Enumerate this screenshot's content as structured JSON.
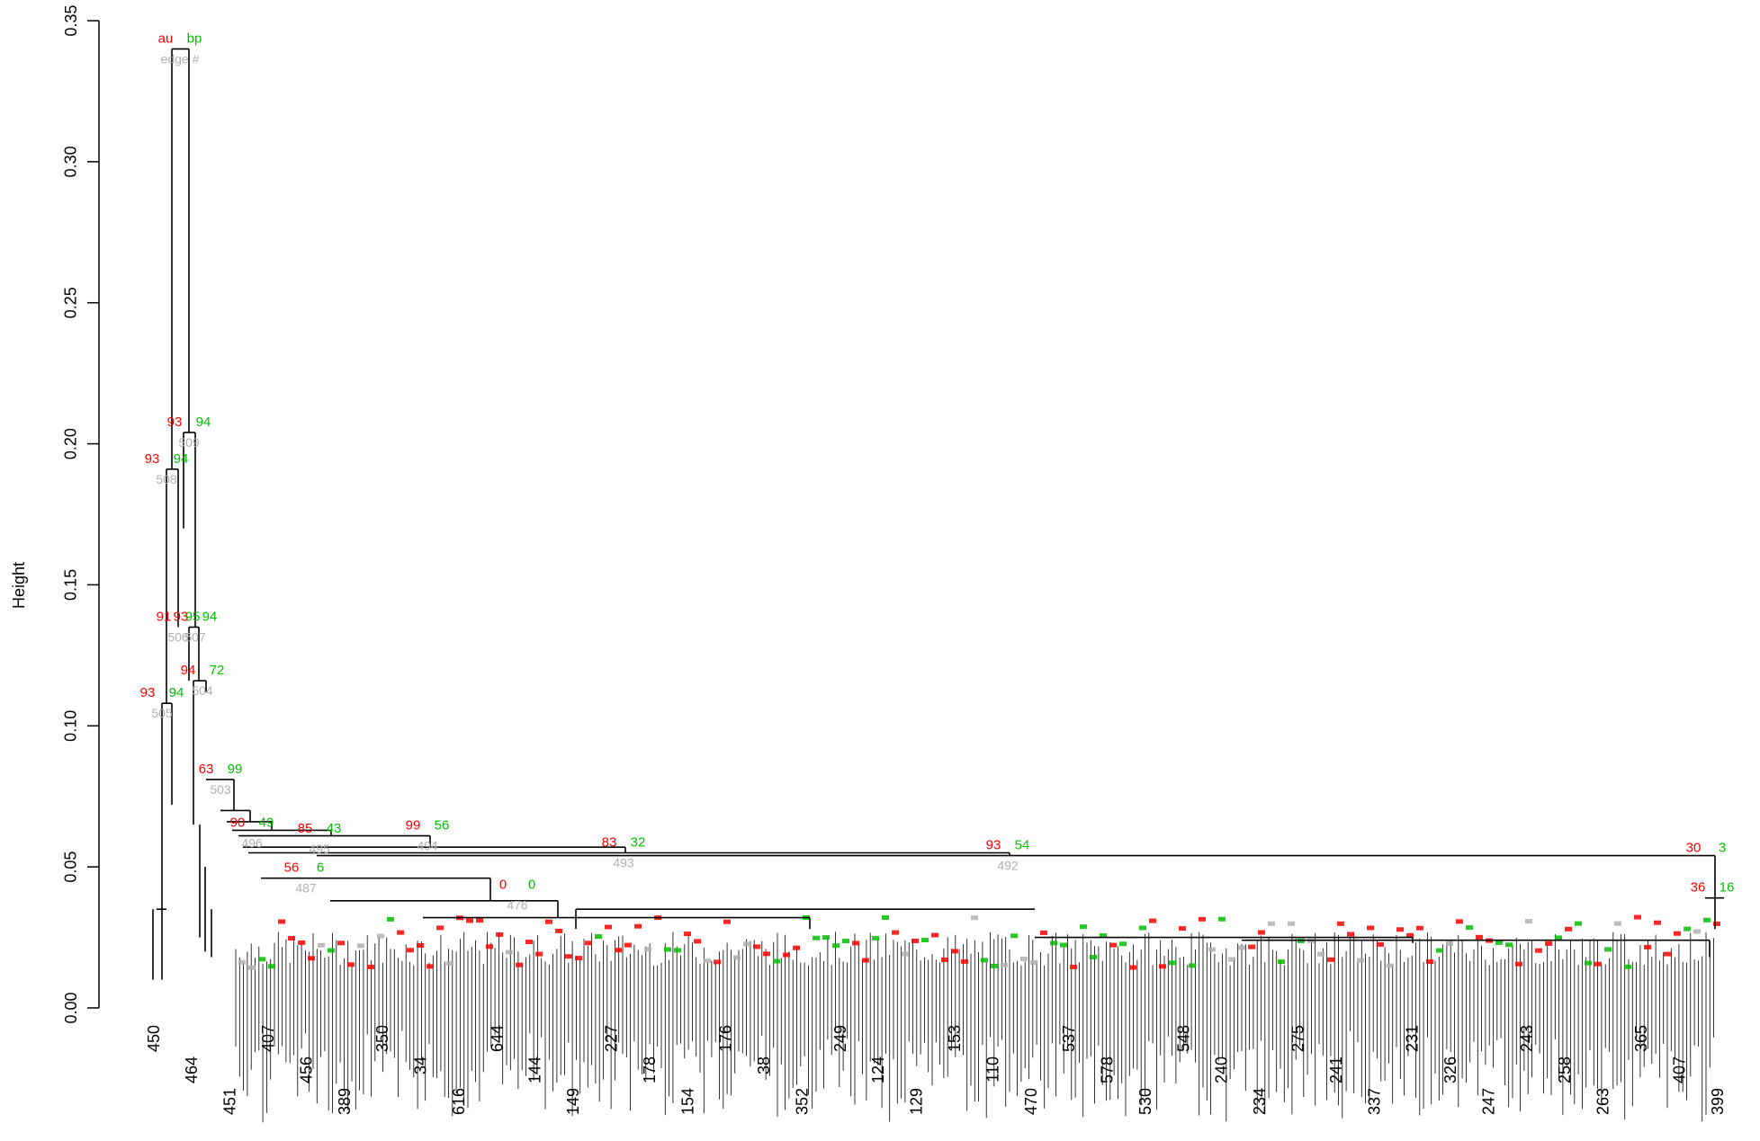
{
  "chart_data": {
    "type": "dendrogram",
    "title": "",
    "xlabel": "",
    "ylabel": "Height",
    "ylim": [
      0,
      0.35
    ],
    "y_ticks": [
      "0.00",
      "0.05",
      "0.10",
      "0.15",
      "0.20",
      "0.25",
      "0.30",
      "0.35"
    ],
    "legend": {
      "au": "au",
      "bp": "bp",
      "edge": "edge #"
    },
    "colors": {
      "au": "#ff0000",
      "bp": "#00c000",
      "edge": "#b0b0b0",
      "tree": "#000000"
    },
    "main_nodes": [
      {
        "id": "root",
        "height": 0.34,
        "au": "au",
        "bp": "bp",
        "edge": "edge #"
      },
      {
        "id": "n509",
        "height": 0.204,
        "au": "93",
        "bp": "94",
        "edge": "509"
      },
      {
        "id": "n508",
        "height": 0.191,
        "au": "93",
        "bp": "94",
        "edge": "508"
      },
      {
        "id": "n507",
        "height": 0.135,
        "au": "93",
        "bp": "94",
        "edge": "507"
      },
      {
        "id": "n506",
        "height": 0.135,
        "au": "91",
        "bp": "95",
        "edge": "506"
      },
      {
        "id": "n504",
        "height": 0.116,
        "au": "94",
        "bp": "72",
        "edge": "504"
      },
      {
        "id": "n505",
        "height": 0.108,
        "au": "93",
        "bp": "94",
        "edge": "505"
      },
      {
        "id": "n503",
        "height": 0.081,
        "au": "63",
        "bp": "99",
        "edge": "503"
      },
      {
        "id": "n496",
        "height": 0.062,
        "au": "90",
        "bp": "49",
        "edge": "496"
      },
      {
        "id": "n495",
        "height": 0.06,
        "au": "85",
        "bp": "43",
        "edge": "495"
      },
      {
        "id": "n494",
        "height": 0.061,
        "au": "99",
        "bp": "56",
        "edge": "494"
      },
      {
        "id": "n493",
        "height": 0.055,
        "au": "83",
        "bp": "32",
        "edge": "493"
      },
      {
        "id": "n492",
        "height": 0.054,
        "au": "93",
        "bp": "54",
        "edge": "492"
      },
      {
        "id": "n487",
        "height": 0.046,
        "au": "56",
        "bp": "6",
        "edge": "487"
      },
      {
        "id": "n476",
        "height": 0.04,
        "au": "0",
        "bp": "0",
        "edge": "476"
      },
      {
        "id": "nR1",
        "height": 0.053,
        "au": "30",
        "bp": "3",
        "edge": ""
      },
      {
        "id": "nR2",
        "height": 0.039,
        "au": "36",
        "bp": "16",
        "edge": ""
      }
    ],
    "leaf_labels_visible": [
      "450",
      "464",
      "451",
      "407",
      "456",
      "389",
      "350",
      "34",
      "616",
      "644",
      "144",
      "149",
      "227",
      "178",
      "154",
      "176",
      "38",
      "352",
      "249",
      "124",
      "129",
      "153",
      "110",
      "470",
      "537",
      "578",
      "530",
      "548",
      "240",
      "234",
      "275",
      "241",
      "337",
      "231",
      "326",
      "247",
      "243",
      "258",
      "263",
      "365",
      "407",
      "399"
    ]
  }
}
